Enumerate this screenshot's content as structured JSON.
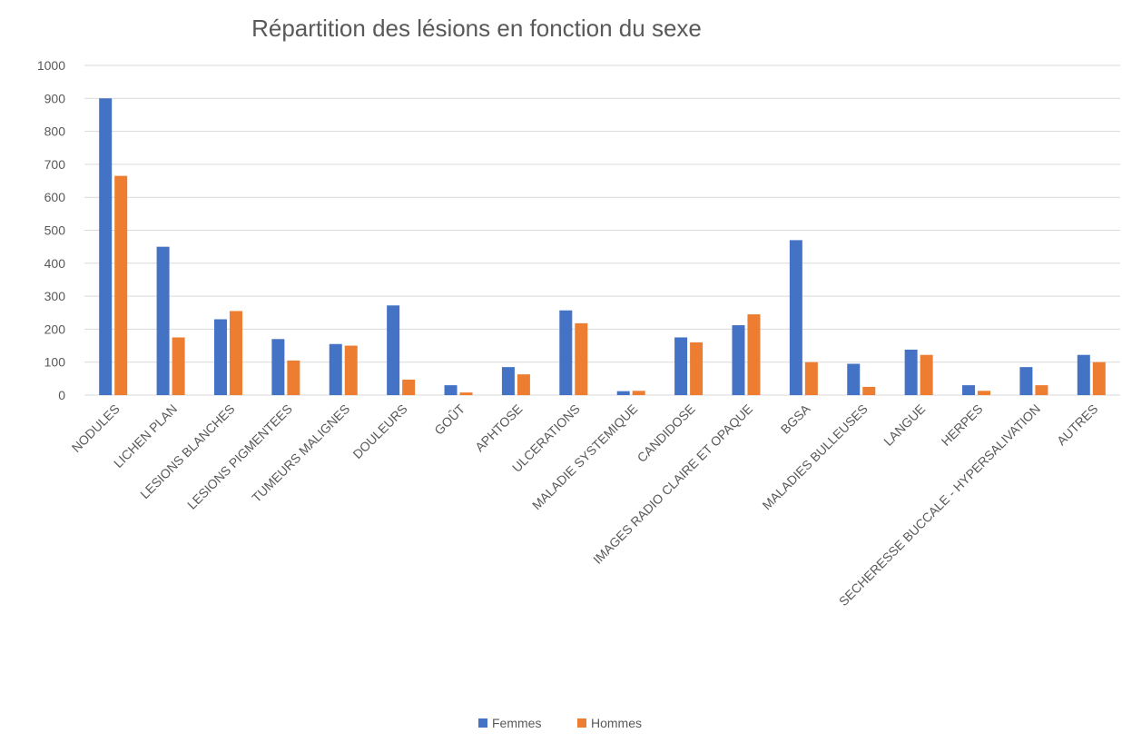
{
  "chart_data": {
    "type": "bar",
    "title": "Répartition des lésions en fonction du sexe",
    "categories": [
      "NODULES",
      "LICHEN PLAN",
      "LESIONS BLANCHES",
      "LESIONS PIGMENTEES",
      "TUMEURS MALIGNES",
      "DOULEURS",
      "GOÛT",
      "APHTOSE",
      "ULCERATIONS",
      "MALADIE SYSTEMIQUE",
      "CANDIDOSE",
      "IMAGES RADIO CLAIRE ET OPAQUE",
      "BGSA",
      "MALADIES BULLEUSES",
      "LANGUE",
      "HERPES",
      "SECHERESSE BUCCALE - HYPERSALIVATION",
      "AUTRES"
    ],
    "series": [
      {
        "name": "Femmes",
        "color": "#4472c4",
        "values": [
          900,
          450,
          230,
          170,
          155,
          272,
          30,
          85,
          257,
          12,
          175,
          212,
          470,
          95,
          138,
          30,
          85,
          122
        ]
      },
      {
        "name": "Hommes",
        "color": "#ed7d31",
        "values": [
          665,
          175,
          255,
          105,
          150,
          47,
          8,
          63,
          218,
          13,
          160,
          245,
          100,
          25,
          122,
          13,
          30,
          100
        ]
      }
    ],
    "ylim": [
      0,
      1000
    ],
    "yticks": [
      0,
      100,
      200,
      300,
      400,
      500,
      600,
      700,
      800,
      900,
      1000
    ],
    "grid": true,
    "legend": "bottom"
  }
}
